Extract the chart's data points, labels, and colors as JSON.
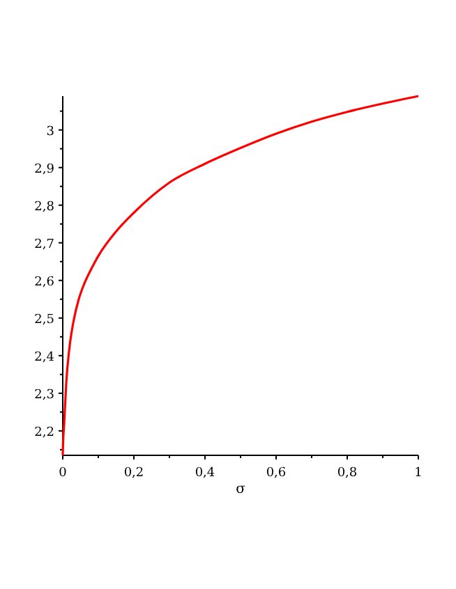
{
  "chart_data": {
    "type": "line",
    "xlabel": "σ",
    "x": [
      0,
      0.001,
      0.004,
      0.01,
      0.02,
      0.03,
      0.045,
      0.06,
      0.08,
      0.1,
      0.15,
      0.2,
      0.3,
      0.4,
      0.5,
      0.6,
      0.7,
      0.8,
      0.9,
      1
    ],
    "series": [
      {
        "color": "#ff0000",
        "values": [
          2.135,
          2.17,
          2.22,
          2.33,
          2.43,
          2.49,
          2.55,
          2.59,
          2.63,
          2.665,
          2.73,
          2.78,
          2.86,
          2.91,
          2.952,
          2.99,
          3.022,
          3.048,
          3.07,
          3.09
        ]
      }
    ],
    "xlim": [
      0,
      1
    ],
    "ylim": [
      2.135,
      3.09
    ],
    "xticks": [
      0,
      {
        "value": 0.1,
        "label": null
      },
      {
        "value": 0.2,
        "label": "0,2"
      },
      {
        "value": 0.3,
        "label": null
      },
      {
        "value": 0.4,
        "label": "0,4"
      },
      {
        "value": 0.5,
        "label": null
      },
      {
        "value": 0.6,
        "label": "0,6"
      },
      {
        "value": 0.7,
        "label": null
      },
      {
        "value": 0.8,
        "label": "0,8"
      },
      {
        "value": 0.9,
        "label": null
      },
      1
    ],
    "yticks": [
      {
        "value": 2.15,
        "label": null
      },
      {
        "value": 2.2,
        "label": "2,2"
      },
      {
        "value": 2.25,
        "label": null
      },
      {
        "value": 2.3,
        "label": "2,3"
      },
      {
        "value": 2.35,
        "label": null
      },
      {
        "value": 2.4,
        "label": "2,4"
      },
      {
        "value": 2.45,
        "label": null
      },
      {
        "value": 2.5,
        "label": "2,5"
      },
      {
        "value": 2.55,
        "label": null
      },
      {
        "value": 2.6,
        "label": "2,6"
      },
      {
        "value": 2.65,
        "label": null
      },
      {
        "value": 2.7,
        "label": "2,7"
      },
      {
        "value": 2.75,
        "label": null
      },
      {
        "value": 2.8,
        "label": "2,8"
      },
      {
        "value": 2.85,
        "label": null
      },
      {
        "value": 2.9,
        "label": "2,9"
      },
      {
        "value": 2.95,
        "label": null
      },
      3,
      {
        "value": 3.05,
        "label": null
      }
    ],
    "grid": false,
    "marker": "none",
    "line_style": "solid"
  }
}
